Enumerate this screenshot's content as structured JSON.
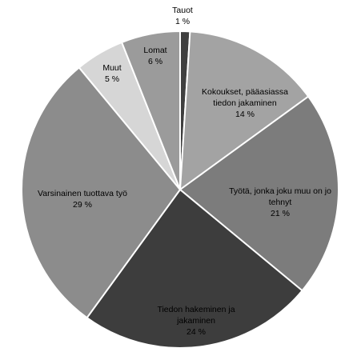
{
  "chart_data": {
    "type": "pie",
    "title": "",
    "start": "top",
    "direction": "clockwise",
    "slices": [
      {
        "label": "Tauot",
        "label_lines": [
          "Tauot"
        ],
        "value": 1,
        "value_label": "1 %",
        "color": "#3f3f3f"
      },
      {
        "label": "Kokoukset, pääasiassa tiedon jakaminen",
        "label_lines": [
          "Kokoukset, pääasiassa",
          "tiedon jakaminen"
        ],
        "value": 14,
        "value_label": "14 %",
        "color": "#a3a3a3"
      },
      {
        "label": "Työtä, jonka joku muu on jo tehnyt",
        "label_lines": [
          "Työtä, jonka joku muu on jo",
          "tehnyt"
        ],
        "value": 21,
        "value_label": "21 %",
        "color": "#7c7c7c"
      },
      {
        "label": "Tiedon hakeminen ja jakaminen",
        "label_lines": [
          "Tiedon hakeminen ja",
          "jakaminen"
        ],
        "value": 24,
        "value_label": "24 %",
        "color": "#3d3d3d"
      },
      {
        "label": "Varsinainen tuottava työ",
        "label_lines": [
          "Varsinainen tuottava työ"
        ],
        "value": 29,
        "value_label": "29 %",
        "color": "#8c8c8c"
      },
      {
        "label": "Muut",
        "label_lines": [
          "Muut"
        ],
        "value": 5,
        "value_label": "5 %",
        "color": "#d6d6d6"
      },
      {
        "label": "Lomat",
        "label_lines": [
          "Lomat"
        ],
        "value": 6,
        "value_label": "6 %",
        "color": "#9b9b9b"
      }
    ]
  }
}
